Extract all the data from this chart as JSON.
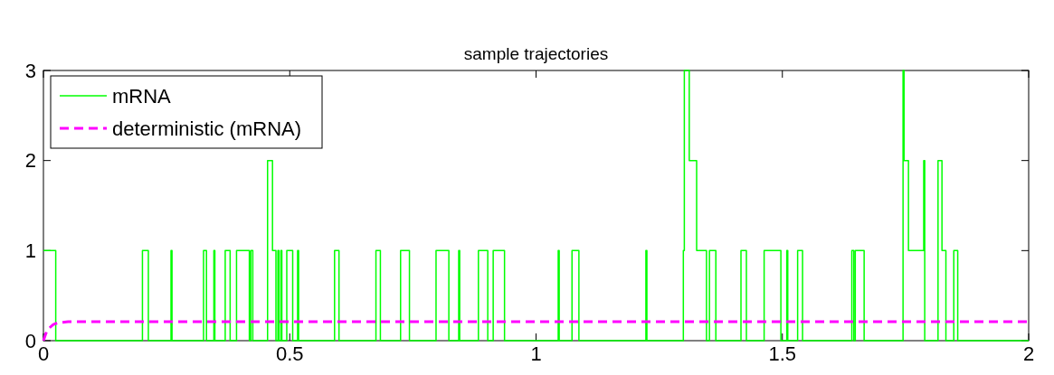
{
  "chart_data": {
    "type": "step",
    "title": "sample trajectories",
    "xlim": [
      0,
      2
    ],
    "xticks": [
      0,
      0.5,
      1,
      1.5,
      2
    ],
    "ylim": [
      0,
      3
    ],
    "yticks": [
      0,
      1,
      2,
      3
    ],
    "grid": false,
    "legend": "top left",
    "series": [
      {
        "name": "mRNA",
        "color": "#00ff00",
        "line_style": "solid",
        "x": [
          0,
          0.025,
          0.201,
          0.213,
          0.259,
          0.261,
          0.325,
          0.331,
          0.346,
          0.348,
          0.369,
          0.379,
          0.392,
          0.418,
          0.421,
          0.425,
          0.455,
          0.465,
          0.472,
          0.476,
          0.478,
          0.482,
          0.484,
          0.494,
          0.506,
          0.516,
          0.518,
          0.591,
          0.6,
          0.675,
          0.684,
          0.725,
          0.743,
          0.797,
          0.823,
          0.843,
          0.845,
          0.883,
          0.902,
          0.913,
          0.936,
          1.045,
          1.047,
          1.073,
          1.087,
          1.223,
          1.225,
          1.299,
          1.301,
          1.311,
          1.326,
          1.346,
          1.352,
          1.365,
          1.416,
          1.427,
          1.463,
          1.497,
          1.509,
          1.511,
          1.531,
          1.541,
          1.641,
          1.645,
          1.648,
          1.666,
          1.745,
          1.747,
          1.756,
          1.787,
          1.789,
          1.816,
          1.824,
          1.832,
          1.848,
          1.856,
          2
        ],
        "values": [
          1,
          0,
          1,
          0,
          1,
          0,
          1,
          0,
          1,
          0,
          1,
          0,
          1,
          0,
          1,
          0,
          2,
          1,
          0,
          1,
          0,
          1,
          0,
          1,
          0,
          1,
          0,
          1,
          0,
          1,
          0,
          1,
          0,
          1,
          0,
          1,
          0,
          1,
          0,
          1,
          0,
          1,
          0,
          1,
          0,
          1,
          0,
          1,
          3,
          2,
          1,
          0,
          1,
          0,
          1,
          0,
          1,
          0,
          1,
          0,
          1,
          0,
          1,
          0,
          1,
          0,
          3,
          2,
          1,
          2,
          0,
          2,
          1,
          0,
          1,
          0,
          0
        ]
      },
      {
        "name": "deterministic (mRNA)",
        "color": "#ff00ff",
        "type": "line",
        "line_style": "dashed",
        "x": [
          0,
          0.005,
          0.01,
          0.02,
          0.03,
          0.05,
          2
        ],
        "values": [
          0,
          0.08,
          0.13,
          0.18,
          0.2,
          0.21,
          0.21
        ]
      }
    ]
  }
}
